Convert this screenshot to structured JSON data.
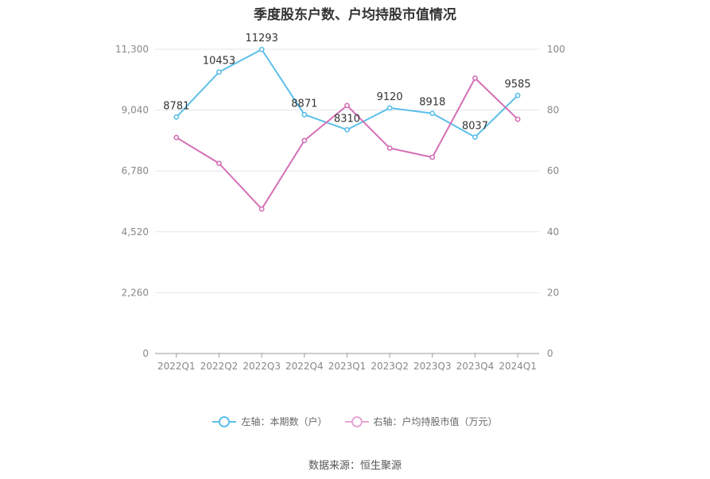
{
  "chart_data": {
    "type": "line",
    "title": "季度股东户数、户均持股市值情况",
    "categories": [
      "2022Q1",
      "2022Q2",
      "2022Q3",
      "2022Q4",
      "2023Q1",
      "2023Q2",
      "2023Q3",
      "2023Q4",
      "2024Q1"
    ],
    "left_axis": {
      "ticks": [
        "0",
        "2,260",
        "4,520",
        "6,780",
        "9,040",
        "11,300"
      ],
      "ylim": [
        0,
        11300
      ]
    },
    "right_axis": {
      "ticks": [
        "0",
        "20",
        "40",
        "60",
        "80",
        "100"
      ],
      "ylim": [
        0,
        100
      ]
    },
    "grid": true,
    "legend_position": "bottom",
    "series": [
      {
        "name": "左轴：本期数（户）",
        "axis": "left",
        "color": "#5bbfea",
        "values": [
          8781,
          10453,
          11293,
          8871,
          8310,
          9120,
          8918,
          8037,
          9585
        ],
        "labels": [
          "8781",
          "10453",
          "11293",
          "8871",
          "8310",
          "9120",
          "8918",
          "8037",
          "9585"
        ]
      },
      {
        "name": "右轴：户均持股市值（万元）",
        "axis": "right",
        "color": "#d46fb6",
        "values": [
          71.0,
          62.5,
          47.5,
          70.0,
          81.5,
          67.5,
          64.5,
          90.5,
          77.0
        ]
      }
    ]
  },
  "source": "数据来源：恒生聚源"
}
